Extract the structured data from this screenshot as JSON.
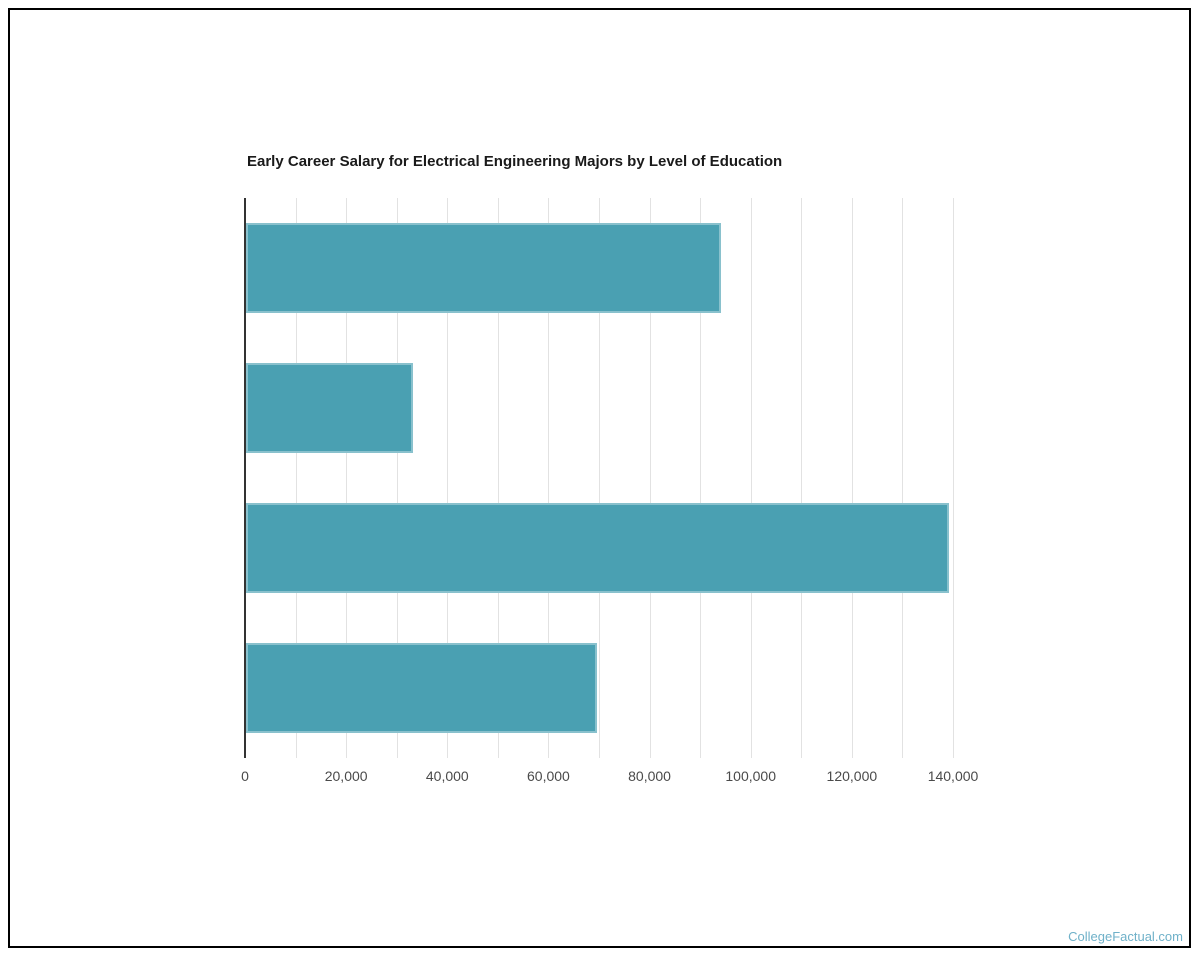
{
  "page": {
    "background": "#ffffff",
    "border_color": "#000000"
  },
  "chart_data": {
    "type": "bar",
    "orientation": "horizontal",
    "title": "Early Career Salary for Electrical Engineering Majors by Level of Education",
    "categories": [
      "",
      "",
      "",
      ""
    ],
    "values": [
      93900,
      33100,
      139100,
      69400
    ],
    "xlabel": "",
    "ylabel": "",
    "xlim": [
      0,
      140000
    ],
    "minor_grid_step": 10000,
    "x_tick_labels": [
      "0",
      "20,000",
      "40,000",
      "60,000",
      "80,000",
      "100,000",
      "120,000",
      "140,000"
    ],
    "grid": true,
    "legend": "none",
    "bar_color": "#4aa0b2",
    "gridline_color": "#e2e2e2",
    "axis_line_color": "#333333",
    "tick_label_color": "#4a4a4a",
    "title_color": "#1a1a1a"
  },
  "footer": {
    "watermark": "CollegeFactual.com",
    "watermark_color": "#6fb1c9"
  }
}
